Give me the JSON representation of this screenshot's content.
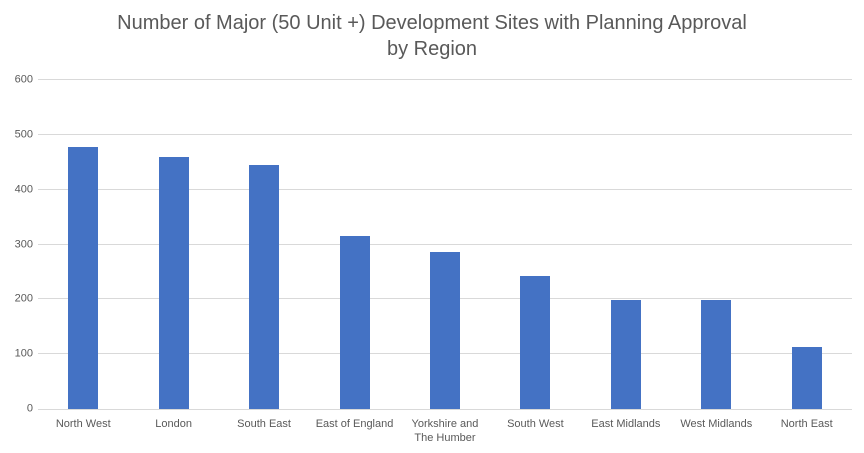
{
  "chart_data": {
    "type": "bar",
    "title": "Number of Major (50 Unit +) Development Sites with Planning Approval by Region",
    "categories": [
      "North West",
      "London",
      "South East",
      "East of England",
      "Yorkshire and The Humber",
      "South West",
      "East Midlands",
      "West Midlands",
      "North East"
    ],
    "values": [
      477,
      460,
      445,
      316,
      286,
      242,
      198,
      198,
      114
    ],
    "xlabel": "",
    "ylabel": "",
    "ylim": [
      0,
      600
    ],
    "yticks": [
      0,
      100,
      200,
      300,
      400,
      500,
      600
    ],
    "grid": true,
    "legend_position": "none",
    "colors": {
      "bar": "#4472C4",
      "gridline": "#D9D9D9",
      "axis_line": "#D9D9D9",
      "tick_label": "#595959",
      "title": "#595959",
      "background": "#FFFFFF"
    }
  }
}
